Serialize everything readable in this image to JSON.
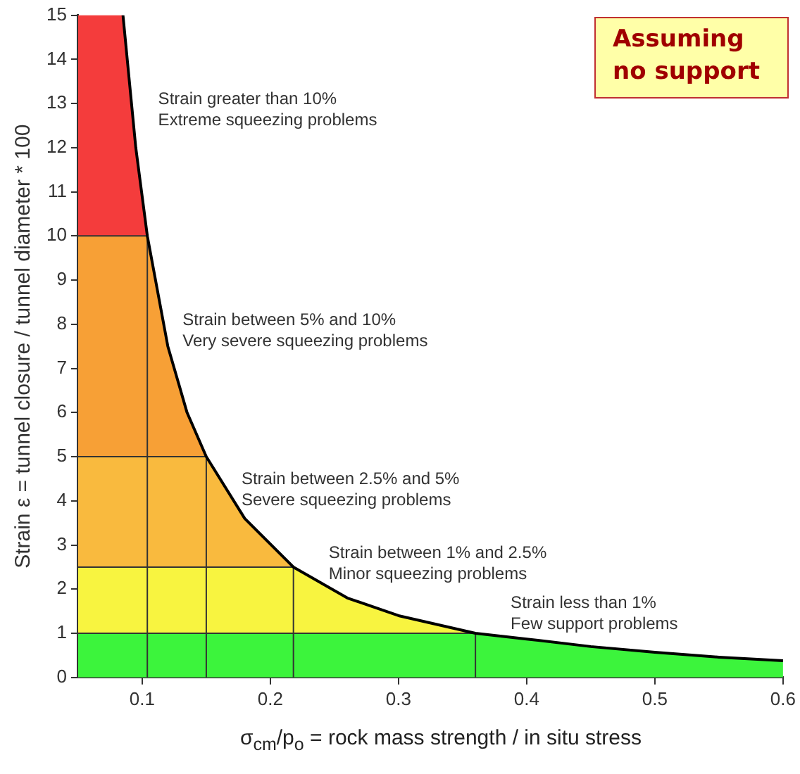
{
  "chart_data": {
    "type": "line",
    "xlabel": "σ$_{cm}$/p$_{o}$ = rock mass strength / in situ stress",
    "ylabel": "Strain ε = tunnel closure / tunnel diameter * 100",
    "x": [
      0.085,
      0.095,
      0.104,
      0.12,
      0.135,
      0.15,
      0.18,
      0.218,
      0.26,
      0.3,
      0.36,
      0.4,
      0.45,
      0.5,
      0.55,
      0.6
    ],
    "series": [
      {
        "color": "#000000",
        "values": [
          15,
          12,
          10,
          7.5,
          6,
          5,
          3.6,
          2.5,
          1.8,
          1.4,
          1,
          0.87,
          0.7,
          0.57,
          0.46,
          0.38
        ]
      }
    ],
    "xlim": [
      0.05,
      0.6
    ],
    "xticks": [
      0.1,
      0.2,
      0.3,
      0.4,
      0.5,
      0.6
    ],
    "ylim": [
      0,
      15
    ],
    "yticks": [
      0,
      1,
      2,
      3,
      4,
      5,
      6,
      7,
      8,
      9,
      10,
      11,
      12,
      13,
      14,
      15
    ],
    "grid": false,
    "legend": false,
    "marker": "none",
    "bands": [
      {
        "axis": "y",
        "from": 10,
        "to": 15,
        "color": "#f43c3c",
        "label": "Strain greater than 10%\nExtreme squeezing problems"
      },
      {
        "axis": "y",
        "from": 5,
        "to": 10,
        "color": "#f7a036",
        "label": "Strain between 5% and 10%\nVery severe squeezing problems"
      },
      {
        "axis": "y",
        "from": 2.5,
        "to": 5,
        "color": "#f9ba3e",
        "label": "Strain between 2.5% and 5%\nSevere squeezing problems"
      },
      {
        "axis": "y",
        "from": 1,
        "to": 2.5,
        "color": "#f8f440",
        "label": "Strain between 1% and 2.5%\nMinor squeezing problems"
      },
      {
        "axis": "y",
        "from": 0,
        "to": 1,
        "color": "#3cf43c",
        "label": "Strain less than 1%\nFew support problems"
      }
    ],
    "ref_lines": [
      {
        "axis": "y",
        "value": 10
      },
      {
        "axis": "y",
        "value": 5
      },
      {
        "axis": "y",
        "value": 2.5
      },
      {
        "axis": "y",
        "value": 1
      },
      {
        "axis": "x",
        "value": 0.104
      },
      {
        "axis": "x",
        "value": 0.15
      },
      {
        "axis": "x",
        "value": 0.218
      },
      {
        "axis": "x",
        "value": 0.36
      }
    ],
    "annotations": [
      "Assuming no support"
    ]
  }
}
